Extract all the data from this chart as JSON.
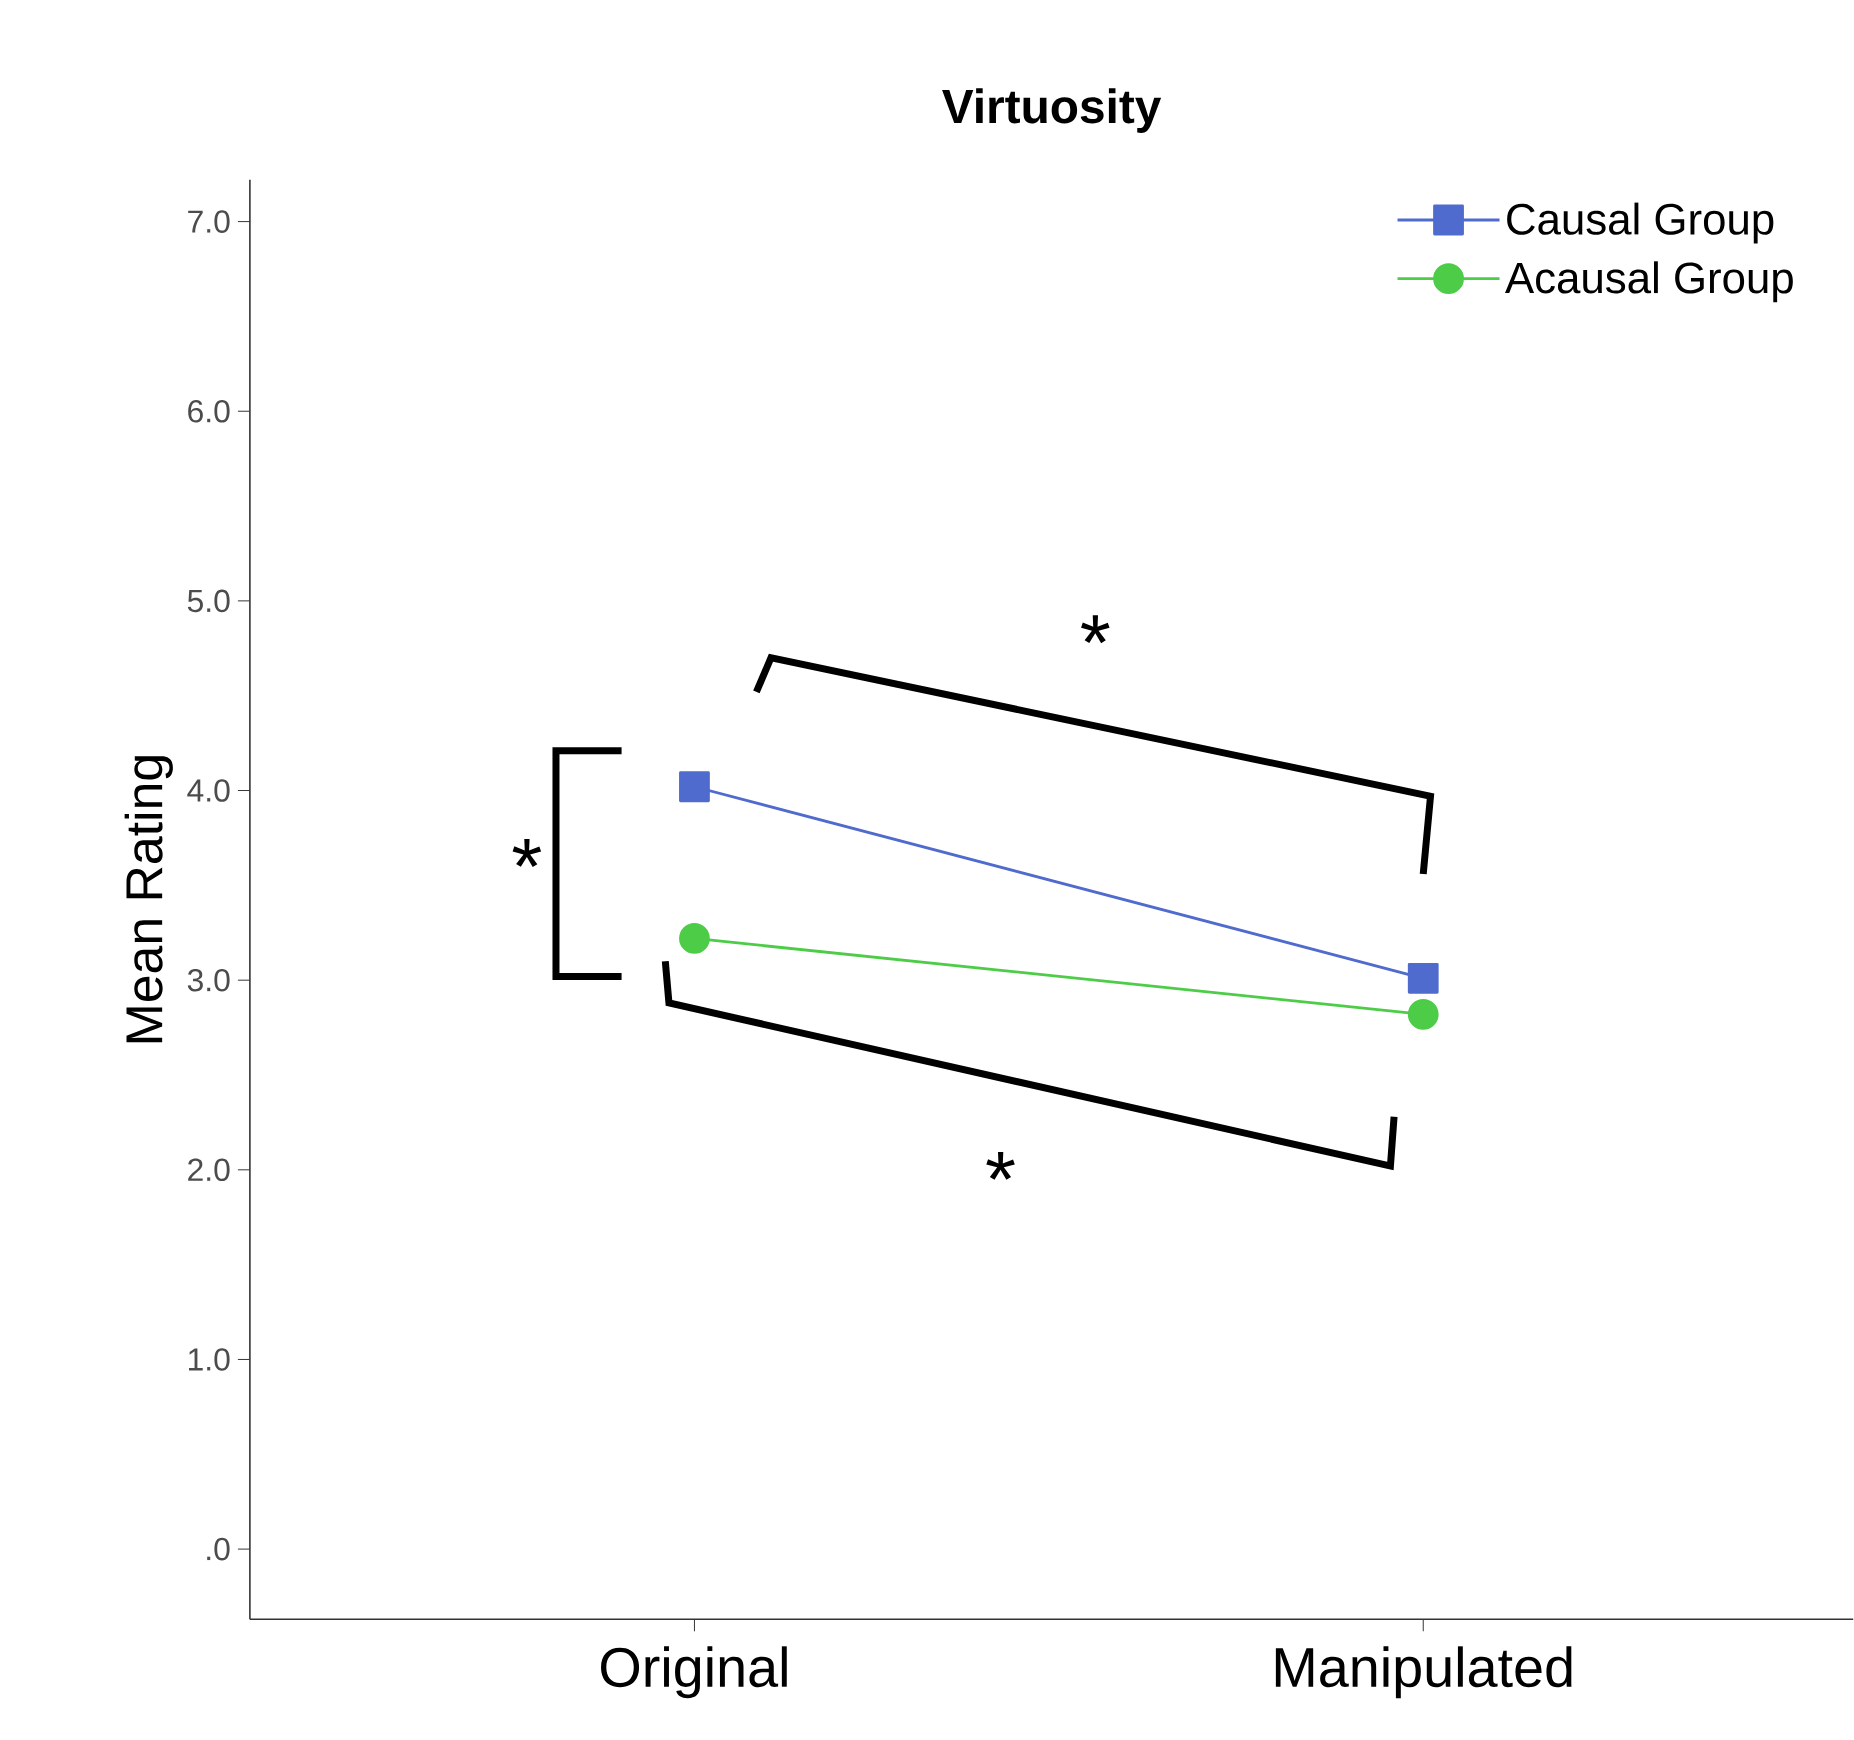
{
  "chart_data": {
    "type": "line",
    "title": "Virtuosity",
    "ylabel": "Mean Rating",
    "categories": [
      "Original",
      "Manipulated"
    ],
    "series": [
      {
        "name": "Causal Group",
        "color": "#4f6bcd",
        "marker": "square",
        "values": [
          4.02,
          3.01
        ]
      },
      {
        "name": "Acausal Group",
        "color": "#4dcc48",
        "marker": "circle",
        "values": [
          3.22,
          2.82
        ]
      }
    ],
    "ylim": [
      -0.37,
      7.22
    ],
    "yticks": [
      {
        "value": 0,
        "label": ".0"
      },
      {
        "value": 1,
        "label": "1.0"
      },
      {
        "value": 2,
        "label": "2.0"
      },
      {
        "value": 3,
        "label": "3.0"
      },
      {
        "value": 4,
        "label": "4.0"
      },
      {
        "value": 5,
        "label": "5.0"
      },
      {
        "value": 6,
        "label": "6.0"
      },
      {
        "value": 7,
        "label": "7.0"
      }
    ],
    "legend": "top right",
    "grid": false,
    "annotations": [
      "*",
      "*",
      "*"
    ]
  }
}
